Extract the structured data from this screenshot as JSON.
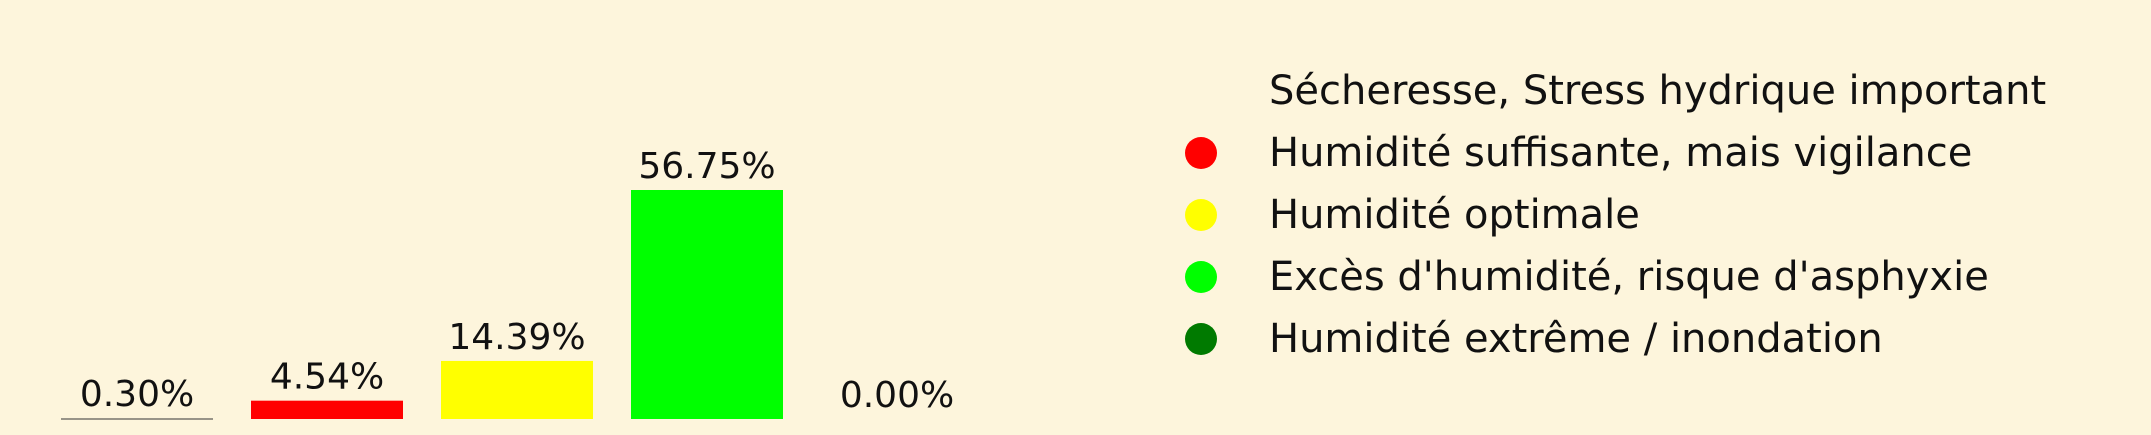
{
  "chart_data": {
    "type": "bar",
    "categories": [
      "Sécheresse, Stress hydrique important",
      "Humidité suffisante, mais vigilance",
      "Humidité optimale",
      "Excès d'humidité, risque d'asphyxie",
      "Humidité extrême / inondation"
    ],
    "values": [
      0.3,
      4.54,
      14.39,
      56.75,
      0.0
    ],
    "value_labels": [
      "0.30%",
      "4.54%",
      "14.39%",
      "56.75%",
      "0.00%"
    ],
    "colors": [
      "#fdf5dc",
      "#ff0000",
      "#ffff00",
      "#00ff00",
      "#007a00"
    ],
    "ylim": [
      0,
      56.75
    ],
    "grid": false,
    "legend_position": "right",
    "title": "",
    "xlabel": "",
    "ylabel": ""
  }
}
